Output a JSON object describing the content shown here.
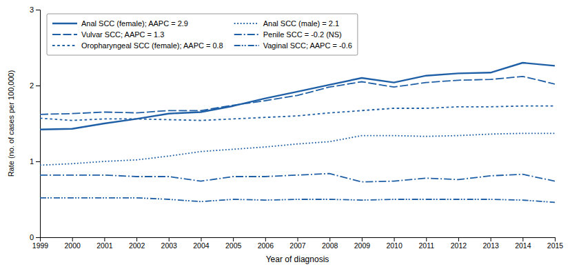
{
  "chart_data": {
    "type": "line",
    "x": [
      1999,
      2000,
      2001,
      2002,
      2003,
      2004,
      2005,
      2006,
      2007,
      2008,
      2009,
      2010,
      2011,
      2012,
      2013,
      2014,
      2015
    ],
    "series": [
      {
        "name": "Anal SCC (female); AAPC = 2.9",
        "color": "#1f5fa6",
        "line_style": "solid",
        "values": [
          1.42,
          1.43,
          1.5,
          1.56,
          1.63,
          1.65,
          1.73,
          1.83,
          1.92,
          2.01,
          2.1,
          2.04,
          2.13,
          2.16,
          2.17,
          2.3,
          2.26
        ]
      },
      {
        "name": "Vulvar SCC; AAPC = 1.3",
        "color": "#1f5fa6",
        "line_style": "dashed",
        "values": [
          1.62,
          1.63,
          1.65,
          1.64,
          1.67,
          1.67,
          1.74,
          1.8,
          1.87,
          1.98,
          2.05,
          1.98,
          2.04,
          2.07,
          2.08,
          2.12,
          2.02
        ]
      },
      {
        "name": "Oropharyngeal SCC (female); AAPC = 0.8",
        "color": "#1f5fa6",
        "line_style": "dotted",
        "values": [
          1.57,
          1.54,
          1.56,
          1.56,
          1.55,
          1.54,
          1.56,
          1.58,
          1.6,
          1.64,
          1.67,
          1.7,
          1.7,
          1.72,
          1.72,
          1.73,
          1.73
        ]
      },
      {
        "name": "Anal SCC (male) = 2.1",
        "color": "#1f5fa6",
        "line_style": "densely-dotted",
        "values": [
          0.95,
          0.97,
          1.0,
          1.02,
          1.07,
          1.13,
          1.16,
          1.19,
          1.23,
          1.26,
          1.34,
          1.34,
          1.33,
          1.34,
          1.36,
          1.37,
          1.37
        ]
      },
      {
        "name": "Penile SCC = -0.2 (NS)",
        "color": "#1f5fa6",
        "line_style": "dashdot",
        "values": [
          0.82,
          0.82,
          0.82,
          0.8,
          0.8,
          0.74,
          0.8,
          0.8,
          0.82,
          0.84,
          0.73,
          0.74,
          0.78,
          0.76,
          0.81,
          0.83,
          0.74
        ]
      },
      {
        "name": "Vaginal SCC; AAPC = -0.6",
        "color": "#1f5fa6",
        "line_style": "dashdotdot",
        "values": [
          0.52,
          0.52,
          0.52,
          0.52,
          0.5,
          0.47,
          0.5,
          0.49,
          0.5,
          0.5,
          0.49,
          0.5,
          0.5,
          0.5,
          0.5,
          0.49,
          0.46
        ]
      }
    ],
    "xlabel": "Year of diagnosis",
    "ylabel": "Rate (no. of cases per 100,000)",
    "xlim": [
      1999,
      2015
    ],
    "xticks": [
      1999,
      2000,
      2001,
      2002,
      2003,
      2004,
      2005,
      2006,
      2007,
      2008,
      2009,
      2010,
      2011,
      2012,
      2013,
      2014,
      2015
    ],
    "ylim": [
      0,
      3
    ],
    "yticks": [
      0,
      1,
      2,
      3
    ],
    "legend": "upper left",
    "grid": false
  }
}
